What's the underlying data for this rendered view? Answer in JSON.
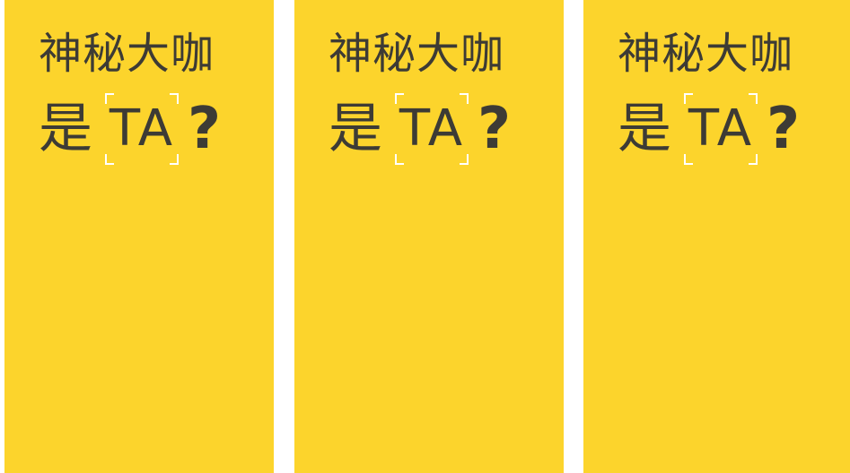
{
  "panels": [
    {
      "line1": "神秘大咖",
      "line2_word": "是",
      "line2_highlight": "TA",
      "line2_punct": "?"
    },
    {
      "line1": "神秘大咖",
      "line2_word": "是",
      "line2_highlight": "TA",
      "line2_punct": "?"
    },
    {
      "line1": "神秘大咖",
      "line2_word": "是",
      "line2_highlight": "TA",
      "line2_punct": "?"
    }
  ],
  "colors": {
    "background": "#fcd42c",
    "text": "#3d3b35",
    "bracket": "#ffffff"
  }
}
